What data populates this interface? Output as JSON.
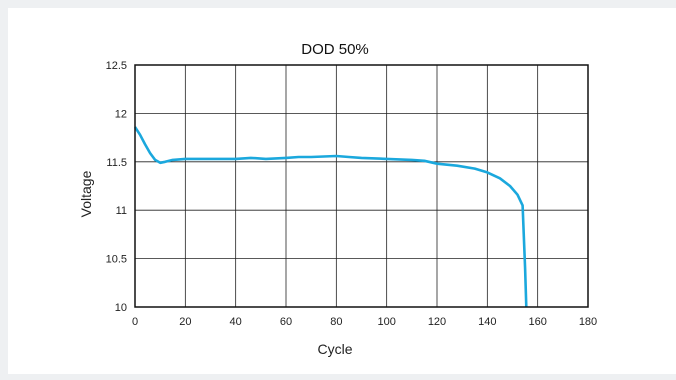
{
  "chart_data": {
    "type": "line",
    "title": "DOD 50%",
    "xlabel": "Cycle",
    "ylabel": "Voltage",
    "xlim": [
      0,
      180
    ],
    "ylim": [
      10,
      12.5
    ],
    "x_ticks": [
      "0",
      "20",
      "40",
      "60",
      "80",
      "100",
      "120",
      "140",
      "160",
      "180"
    ],
    "y_ticks": [
      "10",
      "10.5",
      "11",
      "11.5",
      "12",
      "12.5"
    ],
    "grid": true,
    "series": [
      {
        "color": "#1ba8dd",
        "points": [
          [
            0,
            11.86
          ],
          [
            2,
            11.78
          ],
          [
            4,
            11.68
          ],
          [
            6,
            11.59
          ],
          [
            8,
            11.52
          ],
          [
            10,
            11.49
          ],
          [
            12,
            11.5
          ],
          [
            15,
            11.52
          ],
          [
            20,
            11.53
          ],
          [
            30,
            11.53
          ],
          [
            40,
            11.53
          ],
          [
            46,
            11.54
          ],
          [
            52,
            11.53
          ],
          [
            60,
            11.54
          ],
          [
            65,
            11.55
          ],
          [
            70,
            11.55
          ],
          [
            80,
            11.56
          ],
          [
            85,
            11.55
          ],
          [
            90,
            11.54
          ],
          [
            100,
            11.53
          ],
          [
            110,
            11.52
          ],
          [
            115,
            11.51
          ],
          [
            120,
            11.48
          ],
          [
            128,
            11.46
          ],
          [
            135,
            11.43
          ],
          [
            140,
            11.39
          ],
          [
            145,
            11.33
          ],
          [
            149,
            11.25
          ],
          [
            152,
            11.16
          ],
          [
            154,
            11.05
          ],
          [
            155,
            10.4
          ],
          [
            155.5,
            10.0
          ]
        ]
      }
    ]
  }
}
